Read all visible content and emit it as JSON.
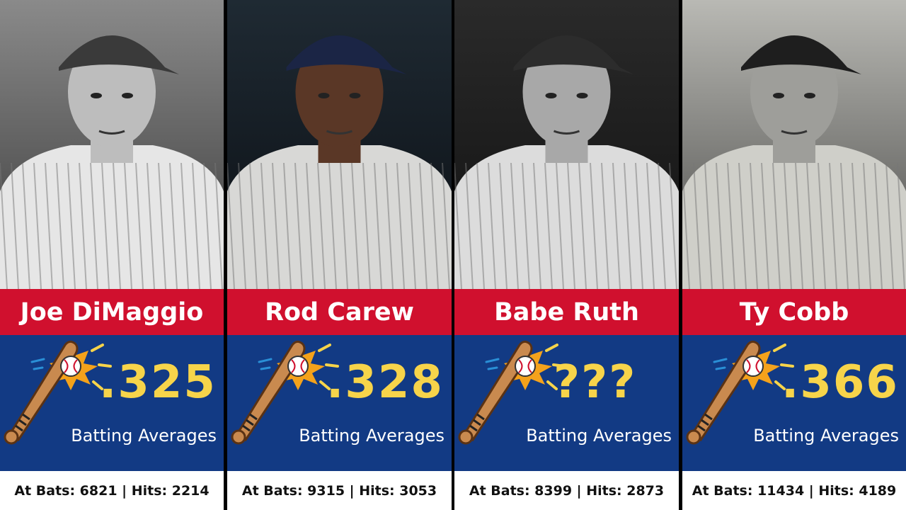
{
  "cards": [
    {
      "name": "Joe DiMaggio",
      "average": ".325",
      "label": "Batting Averages",
      "stats": "At Bats: 6821 | Hits: 2214"
    },
    {
      "name": "Rod Carew",
      "average": ".328",
      "label": "Batting Averages",
      "stats": "At Bats: 9315 | Hits: 3053"
    },
    {
      "name": "Babe Ruth",
      "average": "???",
      "label": "Batting Averages",
      "stats": "At Bats: 8399 | Hits: 2873"
    },
    {
      "name": "Ty Cobb",
      "average": ".366",
      "label": "Batting Averages",
      "stats": "At Bats: 11434 | Hits: 4189"
    }
  ]
}
